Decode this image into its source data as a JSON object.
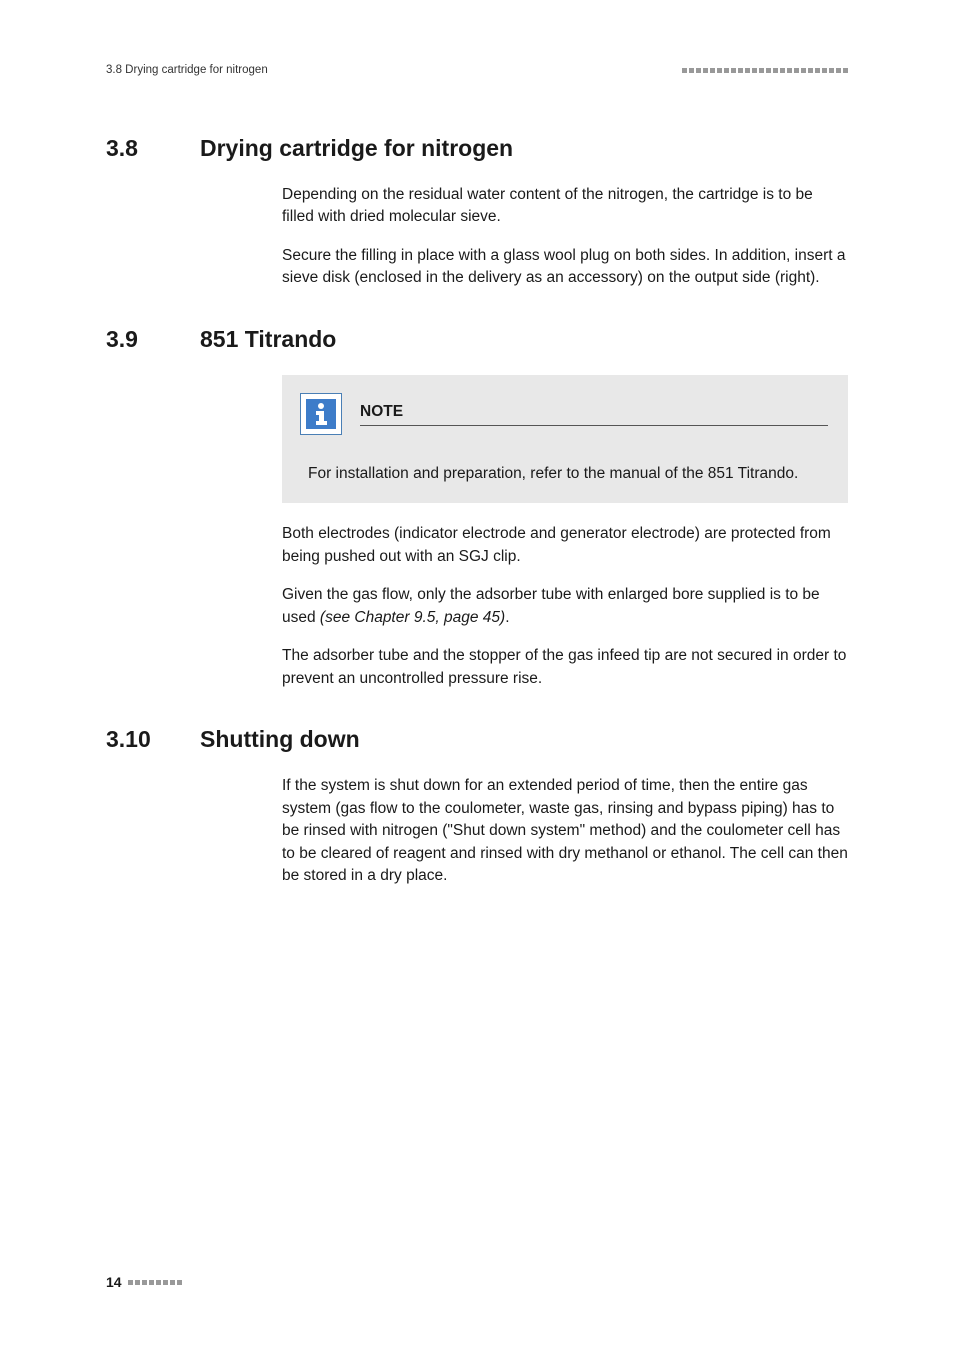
{
  "header": {
    "left": "3.8 Drying cartridge for nitrogen",
    "square_count": 24,
    "square_color": "#999999"
  },
  "sections": [
    {
      "num": "3.8",
      "title": "Drying cartridge for nitrogen",
      "body": [
        {
          "type": "para",
          "text": "Depending on the residual water content of the nitrogen, the cartridge is to be filled with dried molecular sieve."
        },
        {
          "type": "para",
          "text": "Secure the filling in place with a glass wool plug on both sides. In addition, insert a sieve disk (enclosed in the delivery as an accessory) on the output side (right)."
        }
      ]
    },
    {
      "num": "3.9",
      "title": "851 Titrando",
      "body": [
        {
          "type": "note",
          "title": "NOTE",
          "text": "For installation and preparation, refer to the manual of the 851 Titrando."
        },
        {
          "type": "para",
          "text": "Both electrodes (indicator electrode and generator electrode) are protected from being pushed out with an SGJ clip."
        },
        {
          "type": "para_ref",
          "text": "Given the gas flow, only the adsorber tube with enlarged bore supplied is to be used ",
          "ref": "(see Chapter 9.5, page 45)",
          "tail": "."
        },
        {
          "type": "para",
          "text": "The adsorber tube and the stopper of the gas infeed tip are not secured in order to prevent an uncontrolled pressure rise."
        }
      ]
    },
    {
      "num": "3.10",
      "title": "Shutting down",
      "body": [
        {
          "type": "para",
          "text": "If the system is shut down for an extended period of time, then the entire gas system (gas flow to the coulometer, waste gas, rinsing and bypass piping) has to be rinsed with nitrogen (\"Shut down system\" method) and the coulometer cell has to be cleared of reagent and rinsed with dry methanol or ethanol. The cell can then be stored in a dry place."
        }
      ]
    }
  ],
  "note_icon": {
    "bg": "#3d7cc9",
    "glyph": "i"
  },
  "footer": {
    "page": "14",
    "square_count": 8,
    "square_color": "#999999"
  },
  "colors": {
    "text": "#1a1a1a",
    "note_bg": "#e8e8e8",
    "page_bg": "#ffffff"
  }
}
